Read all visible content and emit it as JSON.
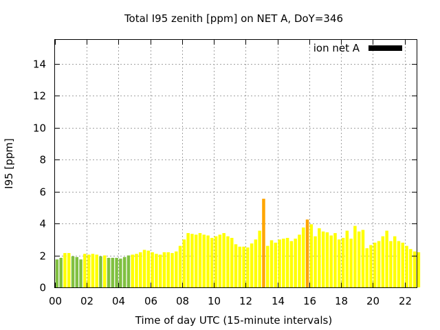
{
  "chart_data": {
    "type": "bar",
    "title": "Total I95 zenith [ppm] on NET A, DoY=346",
    "xlabel": "Time of day UTC (15-minute intervals)",
    "ylabel": "I95 [ppm]",
    "xlim": [
      0,
      22.75
    ],
    "ylim": [
      0,
      15.5
    ],
    "x_ticks": [
      0,
      2,
      4,
      6,
      8,
      10,
      12,
      14,
      16,
      18,
      20,
      22
    ],
    "x_tick_labels": [
      "00",
      "02",
      "04",
      "06",
      "08",
      "10",
      "12",
      "14",
      "16",
      "18",
      "20",
      "22"
    ],
    "y_ticks": [
      0,
      2,
      4,
      6,
      8,
      10,
      12,
      14
    ],
    "y_tick_labels": [
      "0",
      "2",
      "4",
      "6",
      "8",
      "10",
      "12",
      "14"
    ],
    "grid": true,
    "legend": {
      "label": "ion net A",
      "color": "#000000",
      "placement": "top-right"
    },
    "color_scale": {
      "green": "#80c040",
      "yellow": "#ffff00",
      "orange": "#ffa500"
    },
    "series": [
      {
        "x": [
          0.0,
          0.25,
          0.5,
          0.75,
          1.0,
          1.25,
          1.5,
          1.75,
          2.0,
          2.25,
          2.5,
          2.75,
          3.0,
          3.25,
          3.5,
          3.75,
          4.0,
          4.25,
          4.5,
          4.75,
          5.0,
          5.25,
          5.5,
          5.75,
          6.0,
          6.25,
          6.5,
          6.75,
          7.0,
          7.25,
          7.5,
          7.75,
          8.0,
          8.25,
          8.5,
          8.75,
          9.0,
          9.25,
          9.5,
          9.75,
          10.0,
          10.25,
          10.5,
          10.75,
          11.0,
          11.25,
          11.5,
          11.75,
          12.0,
          12.25,
          12.5,
          12.75,
          13.0,
          13.25,
          13.5,
          13.75,
          14.0,
          14.25,
          14.5,
          14.75,
          15.0,
          15.25,
          15.5,
          15.75,
          16.0,
          16.25,
          16.5,
          16.75,
          17.0,
          17.25,
          17.5,
          17.75,
          18.0,
          18.25,
          18.5,
          18.75,
          19.0,
          19.25,
          19.5,
          19.75,
          20.0,
          20.25,
          20.5,
          20.75,
          21.0,
          21.25,
          21.5,
          21.75,
          22.0,
          22.25,
          22.5,
          22.75
        ],
        "values": [
          1.75,
          1.85,
          2.15,
          2.15,
          1.95,
          1.9,
          1.75,
          2.1,
          2.05,
          2.1,
          2.05,
          1.95,
          2.0,
          1.85,
          1.85,
          1.85,
          1.8,
          1.9,
          2.0,
          2.05,
          2.1,
          2.2,
          2.35,
          2.3,
          2.2,
          2.1,
          2.05,
          2.2,
          2.2,
          2.15,
          2.25,
          2.6,
          3.0,
          3.4,
          3.35,
          3.3,
          3.4,
          3.3,
          3.25,
          3.1,
          3.2,
          3.3,
          3.4,
          3.2,
          3.1,
          2.7,
          2.55,
          2.55,
          2.5,
          2.75,
          3.0,
          3.55,
          5.55,
          2.6,
          2.95,
          2.8,
          3.0,
          3.05,
          3.1,
          2.9,
          3.05,
          3.3,
          3.75,
          4.25,
          3.95,
          3.2,
          3.7,
          3.5,
          3.45,
          3.25,
          3.4,
          3.0,
          3.1,
          3.55,
          3.05,
          3.85,
          3.5,
          3.6,
          2.45,
          2.65,
          2.8,
          2.9,
          3.2,
          3.55,
          2.9,
          3.2,
          2.9,
          2.8,
          2.6,
          2.4,
          2.25,
          2.2
        ],
        "colors": [
          "#80c040",
          "#80c040",
          "#ffff00",
          "#ffff00",
          "#80c040",
          "#80c040",
          "#80c040",
          "#ffff00",
          "#ffff00",
          "#ffff00",
          "#ffff00",
          "#80c040",
          "#ffff00",
          "#80c040",
          "#80c040",
          "#80c040",
          "#80c040",
          "#80c040",
          "#80c040",
          "#ffff00",
          "#ffff00",
          "#ffff00",
          "#ffff00",
          "#ffff00",
          "#ffff00",
          "#ffff00",
          "#ffff00",
          "#ffff00",
          "#ffff00",
          "#ffff00",
          "#ffff00",
          "#ffff00",
          "#ffff00",
          "#ffff00",
          "#ffff00",
          "#ffff00",
          "#ffff00",
          "#ffff00",
          "#ffff00",
          "#ffff00",
          "#ffff00",
          "#ffff00",
          "#ffff00",
          "#ffff00",
          "#ffff00",
          "#ffff00",
          "#ffff00",
          "#ffff00",
          "#ffff00",
          "#ffff00",
          "#ffff00",
          "#ffff00",
          "#ffa500",
          "#ffff00",
          "#ffff00",
          "#ffff00",
          "#ffff00",
          "#ffff00",
          "#ffff00",
          "#ffff00",
          "#ffff00",
          "#ffff00",
          "#ffff00",
          "#ffa500",
          "#ffff00",
          "#ffff00",
          "#ffff00",
          "#ffff00",
          "#ffff00",
          "#ffff00",
          "#ffff00",
          "#ffff00",
          "#ffff00",
          "#ffff00",
          "#ffff00",
          "#ffff00",
          "#ffff00",
          "#ffff00",
          "#ffff00",
          "#ffff00",
          "#ffff00",
          "#ffff00",
          "#ffff00",
          "#ffff00",
          "#ffff00",
          "#ffff00",
          "#ffff00",
          "#ffff00",
          "#ffff00",
          "#ffff00",
          "#ffff00",
          "#ffff00"
        ]
      }
    ]
  }
}
